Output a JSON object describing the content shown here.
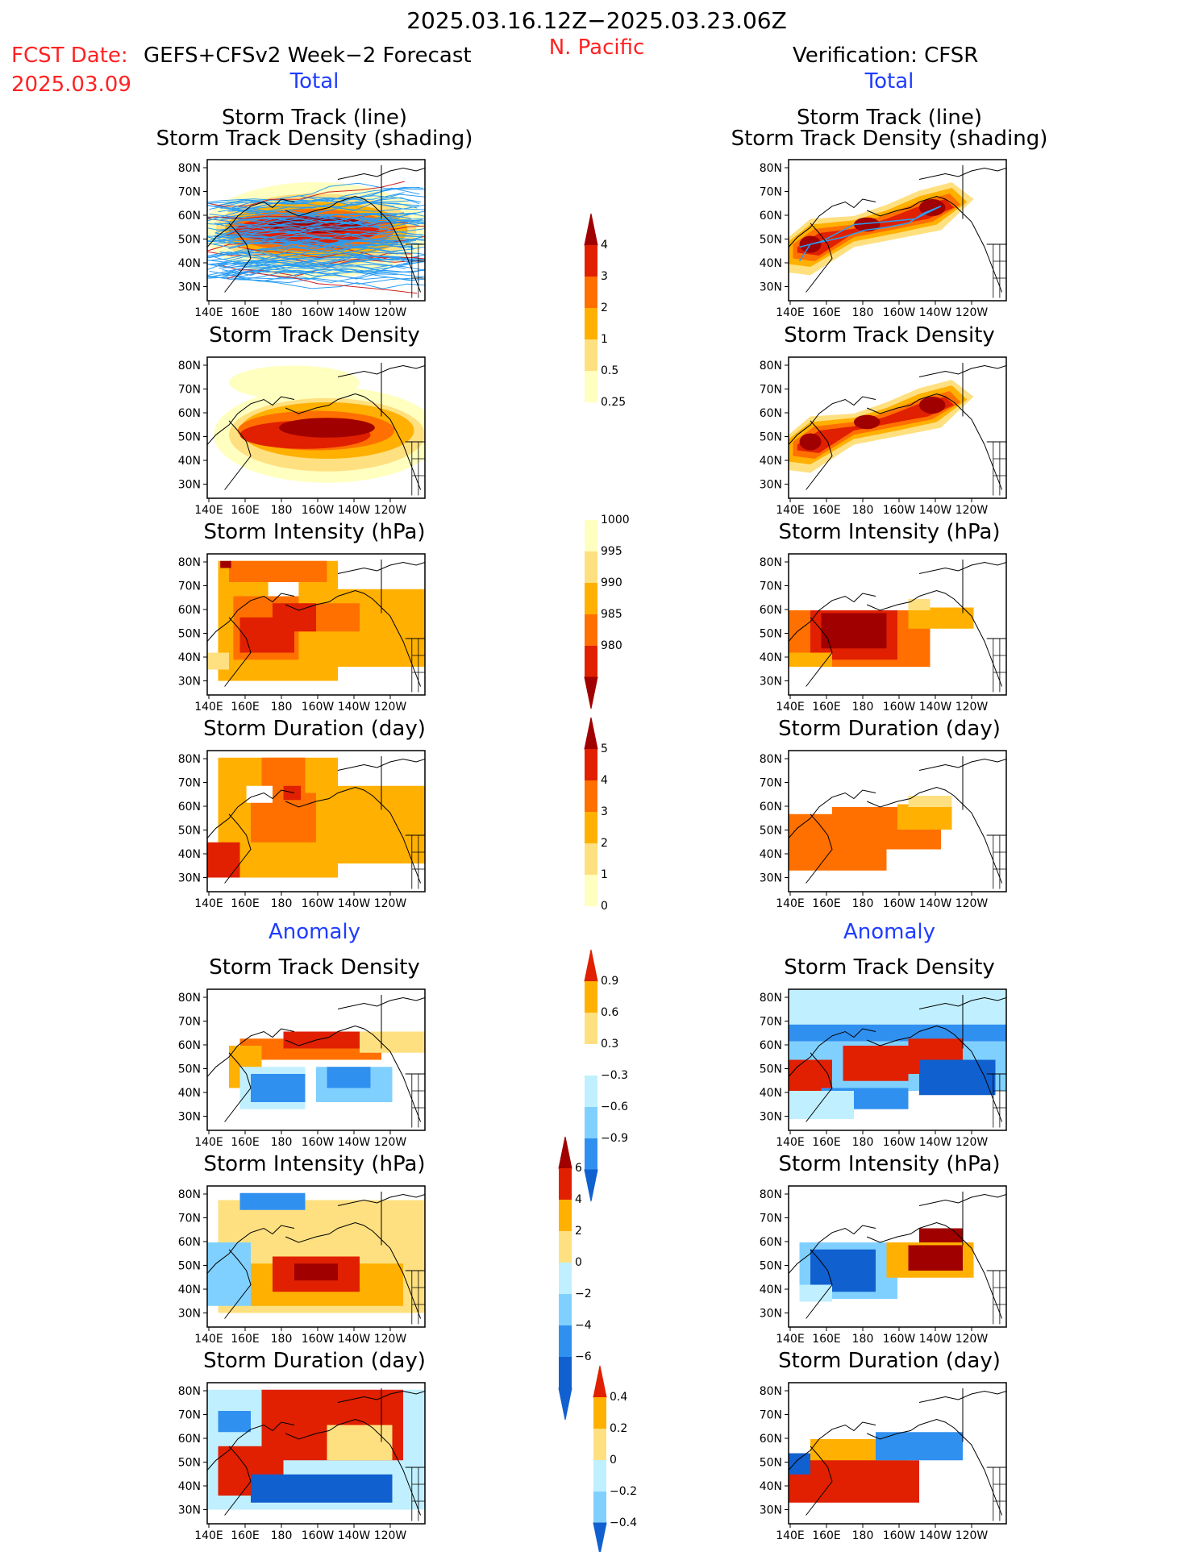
{
  "header": {
    "date_range": "2025.03.16.12Z−2025.03.23.06Z",
    "region": "N. Pacific",
    "fcst_label": "FCST Date:",
    "fcst_model": "GEFS+CFSv2 Week−2 Forecast",
    "fcst_date": "2025.03.09",
    "verification": "Verification: CFSR",
    "total_left": "Total",
    "total_right": "Total",
    "anomaly_left": "Anomaly",
    "anomaly_right": "Anomaly"
  },
  "panel_titles": {
    "track_line": "Storm Track (line)",
    "track_shading": "Storm Track Density (shading)",
    "density": "Storm Track Density",
    "intensity": "Storm Intensity (hPa)",
    "duration": "Storm Duration (day)"
  },
  "axes": {
    "lon_ticks": [
      "140E",
      "160E",
      "180",
      "160W",
      "140W",
      "120W"
    ],
    "lat_ticks": [
      "80N",
      "70N",
      "60N",
      "50N",
      "40N",
      "30N"
    ]
  },
  "colorbars": {
    "density_total": [
      "4",
      "3",
      "2",
      "1",
      "0.5",
      "0.25"
    ],
    "intensity_total": [
      "1000",
      "995",
      "990",
      "985",
      "980"
    ],
    "duration_total": [
      "5",
      "4",
      "3",
      "2",
      "1",
      "0"
    ],
    "density_anom": [
      "0.9",
      "0.6",
      "0.3",
      "−0.3",
      "−0.6",
      "−0.9"
    ],
    "intensity_anom": [
      "6",
      "4",
      "2",
      "0",
      "−2",
      "−4",
      "−6"
    ],
    "duration_anom": [
      "0.4",
      "0.2",
      "0",
      "−0.2",
      "−0.4"
    ]
  },
  "colors": {
    "warm": [
      "#ffffc0",
      "#ffe080",
      "#ffb000",
      "#ff7000",
      "#e02000",
      "#a00000"
    ],
    "cool": [
      "#c0f0ff",
      "#80d0ff",
      "#3090f0",
      "#1060d0"
    ],
    "track_line": "#2a9df4",
    "track_line_red": "#d02020"
  }
}
